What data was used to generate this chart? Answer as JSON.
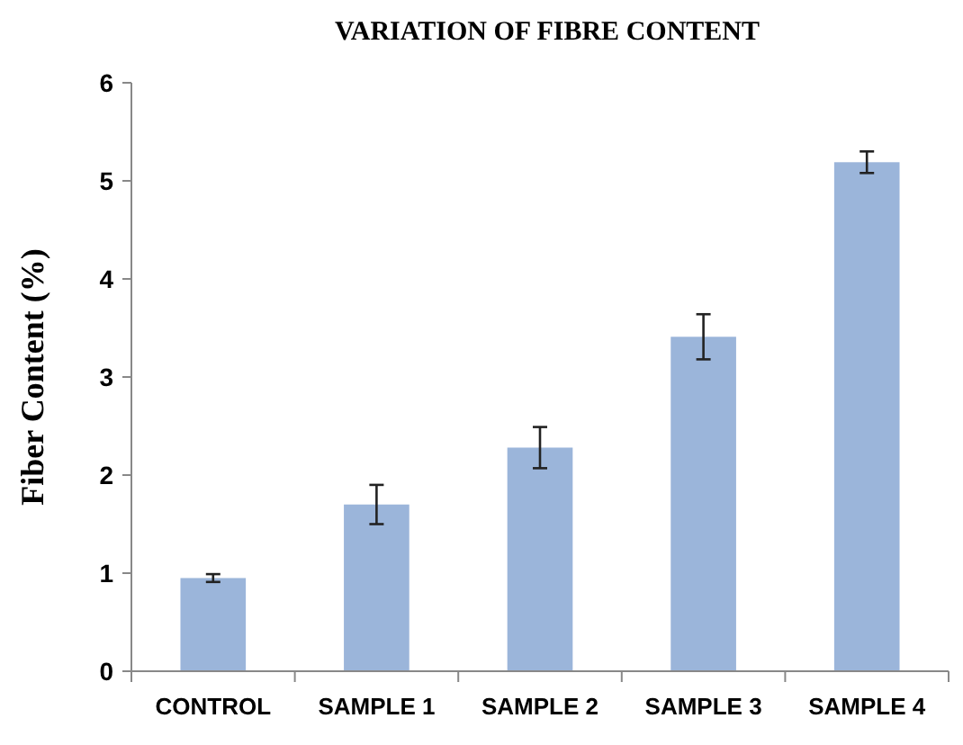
{
  "chart_data": {
    "type": "bar",
    "title": "VARIATION  OF FIBRE CONTENT",
    "ylabel": "Fiber Content (%)",
    "categories": [
      "CONTROL",
      "SAMPLE 1",
      "SAMPLE 2",
      "SAMPLE 3",
      "SAMPLE 4"
    ],
    "values": [
      0.95,
      1.7,
      2.28,
      3.41,
      5.19
    ],
    "errors": [
      0.04,
      0.2,
      0.21,
      0.23,
      0.11
    ],
    "color": "#9bb5da",
    "ylim": [
      0,
      6
    ],
    "yticks": [
      0,
      1,
      2,
      3,
      4,
      5,
      6
    ],
    "grid": false
  }
}
